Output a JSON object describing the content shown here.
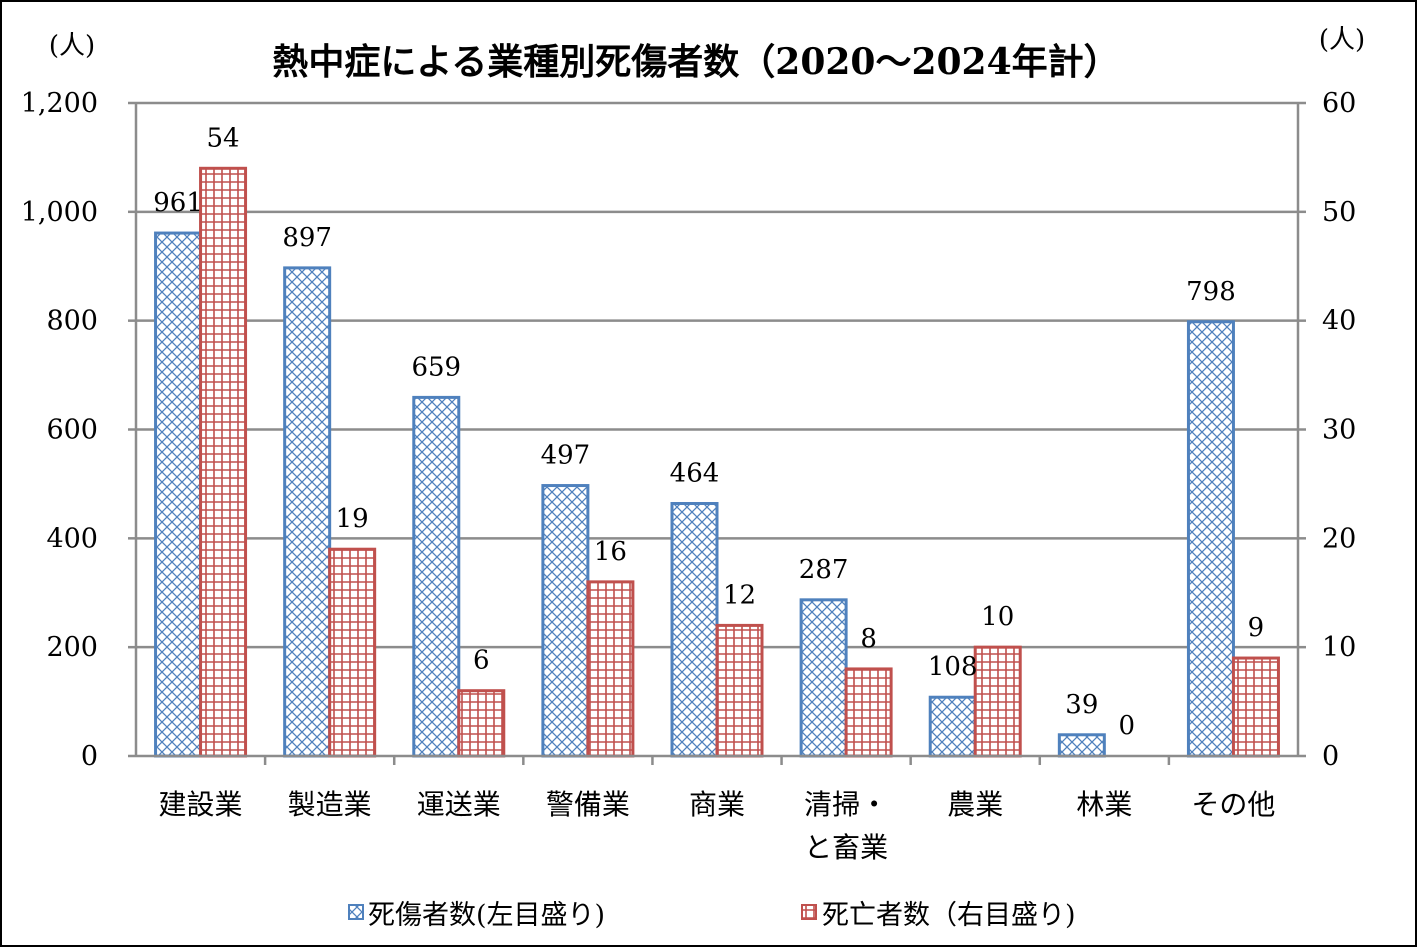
{
  "chart_data": {
    "type": "bar",
    "title": "熱中症による業種別死傷者数（2020～2024年計）",
    "categories": [
      [
        "建設業"
      ],
      [
        "製造業"
      ],
      [
        "運送業"
      ],
      [
        "警備業"
      ],
      [
        "商業"
      ],
      [
        "清掃・",
        "と畜業"
      ],
      [
        "農業"
      ],
      [
        "林業"
      ],
      [
        "その他"
      ]
    ],
    "series": [
      {
        "name": "死傷者数(左目盛り)",
        "axis": "left",
        "values": [
          961,
          897,
          659,
          497,
          464,
          287,
          108,
          39,
          798
        ],
        "color": "#4f81bd",
        "pattern": "diamond-hatch"
      },
      {
        "name": "死亡者数（右目盛り)",
        "axis": "right",
        "values": [
          54,
          19,
          6,
          16,
          12,
          8,
          10,
          0,
          9
        ],
        "color": "#c0504d",
        "pattern": "grid"
      }
    ],
    "y_left": {
      "unit": "(人)",
      "ylim": [
        0,
        1200
      ],
      "ticks": [
        "0",
        "200",
        "400",
        "600",
        "800",
        "1,000",
        "1,200"
      ]
    },
    "y_right": {
      "unit": "(人)",
      "ylim": [
        0,
        60
      ],
      "ticks": [
        "0",
        "10",
        "20",
        "30",
        "40",
        "50",
        "60"
      ]
    },
    "grid": true,
    "legend_position": "bottom"
  }
}
